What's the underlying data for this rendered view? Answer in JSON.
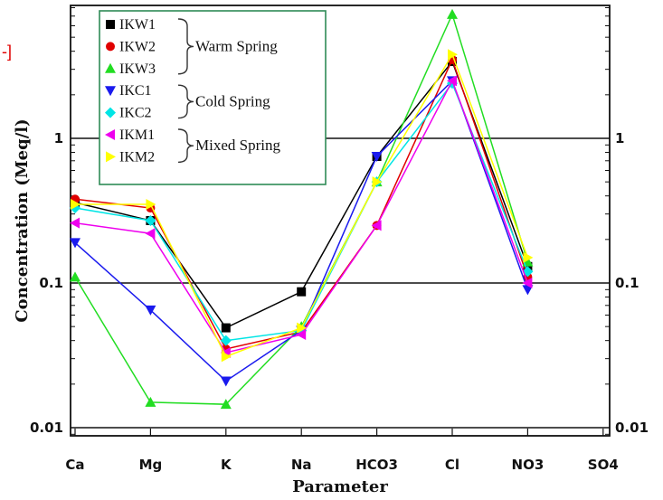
{
  "corner_fragment": "-]",
  "chart_data": {
    "type": "line",
    "y_scale": "log",
    "xlabel": "Parameter",
    "ylabel": "Concentration (Meq/l)",
    "categories": [
      "Ca",
      "Mg",
      "K",
      "Na",
      "HCO3",
      "Cl",
      "NO3",
      "SO4"
    ],
    "ylim": [
      0.008,
      9
    ],
    "y_ticks": [
      0.01,
      0.1,
      1
    ],
    "y_tick_labels": [
      "0.01",
      "0.1",
      "1"
    ],
    "grid": true,
    "legend_position": "top-left",
    "series": [
      {
        "name": "IKW1",
        "color": "#000000",
        "marker": "square",
        "values": [
          0.36,
          0.27,
          0.049,
          0.087,
          0.75,
          3.4,
          0.13,
          null
        ]
      },
      {
        "name": "IKW2",
        "color": "#e00000",
        "marker": "circle",
        "values": [
          0.38,
          0.33,
          0.035,
          0.046,
          0.25,
          3.5,
          0.11,
          null
        ]
      },
      {
        "name": "IKW3",
        "color": "#22dd22",
        "marker": "triangle-up",
        "values": [
          0.11,
          0.015,
          0.0145,
          0.05,
          0.5,
          7.2,
          0.14,
          null
        ]
      },
      {
        "name": "IKC1",
        "color": "#1a1aee",
        "marker": "triangle-down",
        "values": [
          0.19,
          0.065,
          0.021,
          0.047,
          0.75,
          2.5,
          0.09,
          null
        ]
      },
      {
        "name": "IKC2",
        "color": "#00e5e5",
        "marker": "diamond",
        "values": [
          0.33,
          0.27,
          0.04,
          0.047,
          0.5,
          2.4,
          0.12,
          null
        ]
      },
      {
        "name": "IKM1",
        "color": "#ee00ee",
        "marker": "triangle-left",
        "values": [
          0.26,
          0.22,
          0.033,
          0.044,
          0.25,
          2.5,
          0.1,
          null
        ]
      },
      {
        "name": "IKM2",
        "color": "#ffff00",
        "marker": "triangle-right",
        "values": [
          0.35,
          0.35,
          0.031,
          0.049,
          0.5,
          3.8,
          0.15,
          null
        ]
      }
    ],
    "legend_groups": [
      {
        "label": "Warm Spring",
        "series": [
          "IKW1",
          "IKW2",
          "IKW3"
        ]
      },
      {
        "label": "Cold Spring",
        "series": [
          "IKC1",
          "IKC2"
        ]
      },
      {
        "label": "Mixed Spring",
        "series": [
          "IKM1",
          "IKM2"
        ]
      }
    ]
  }
}
